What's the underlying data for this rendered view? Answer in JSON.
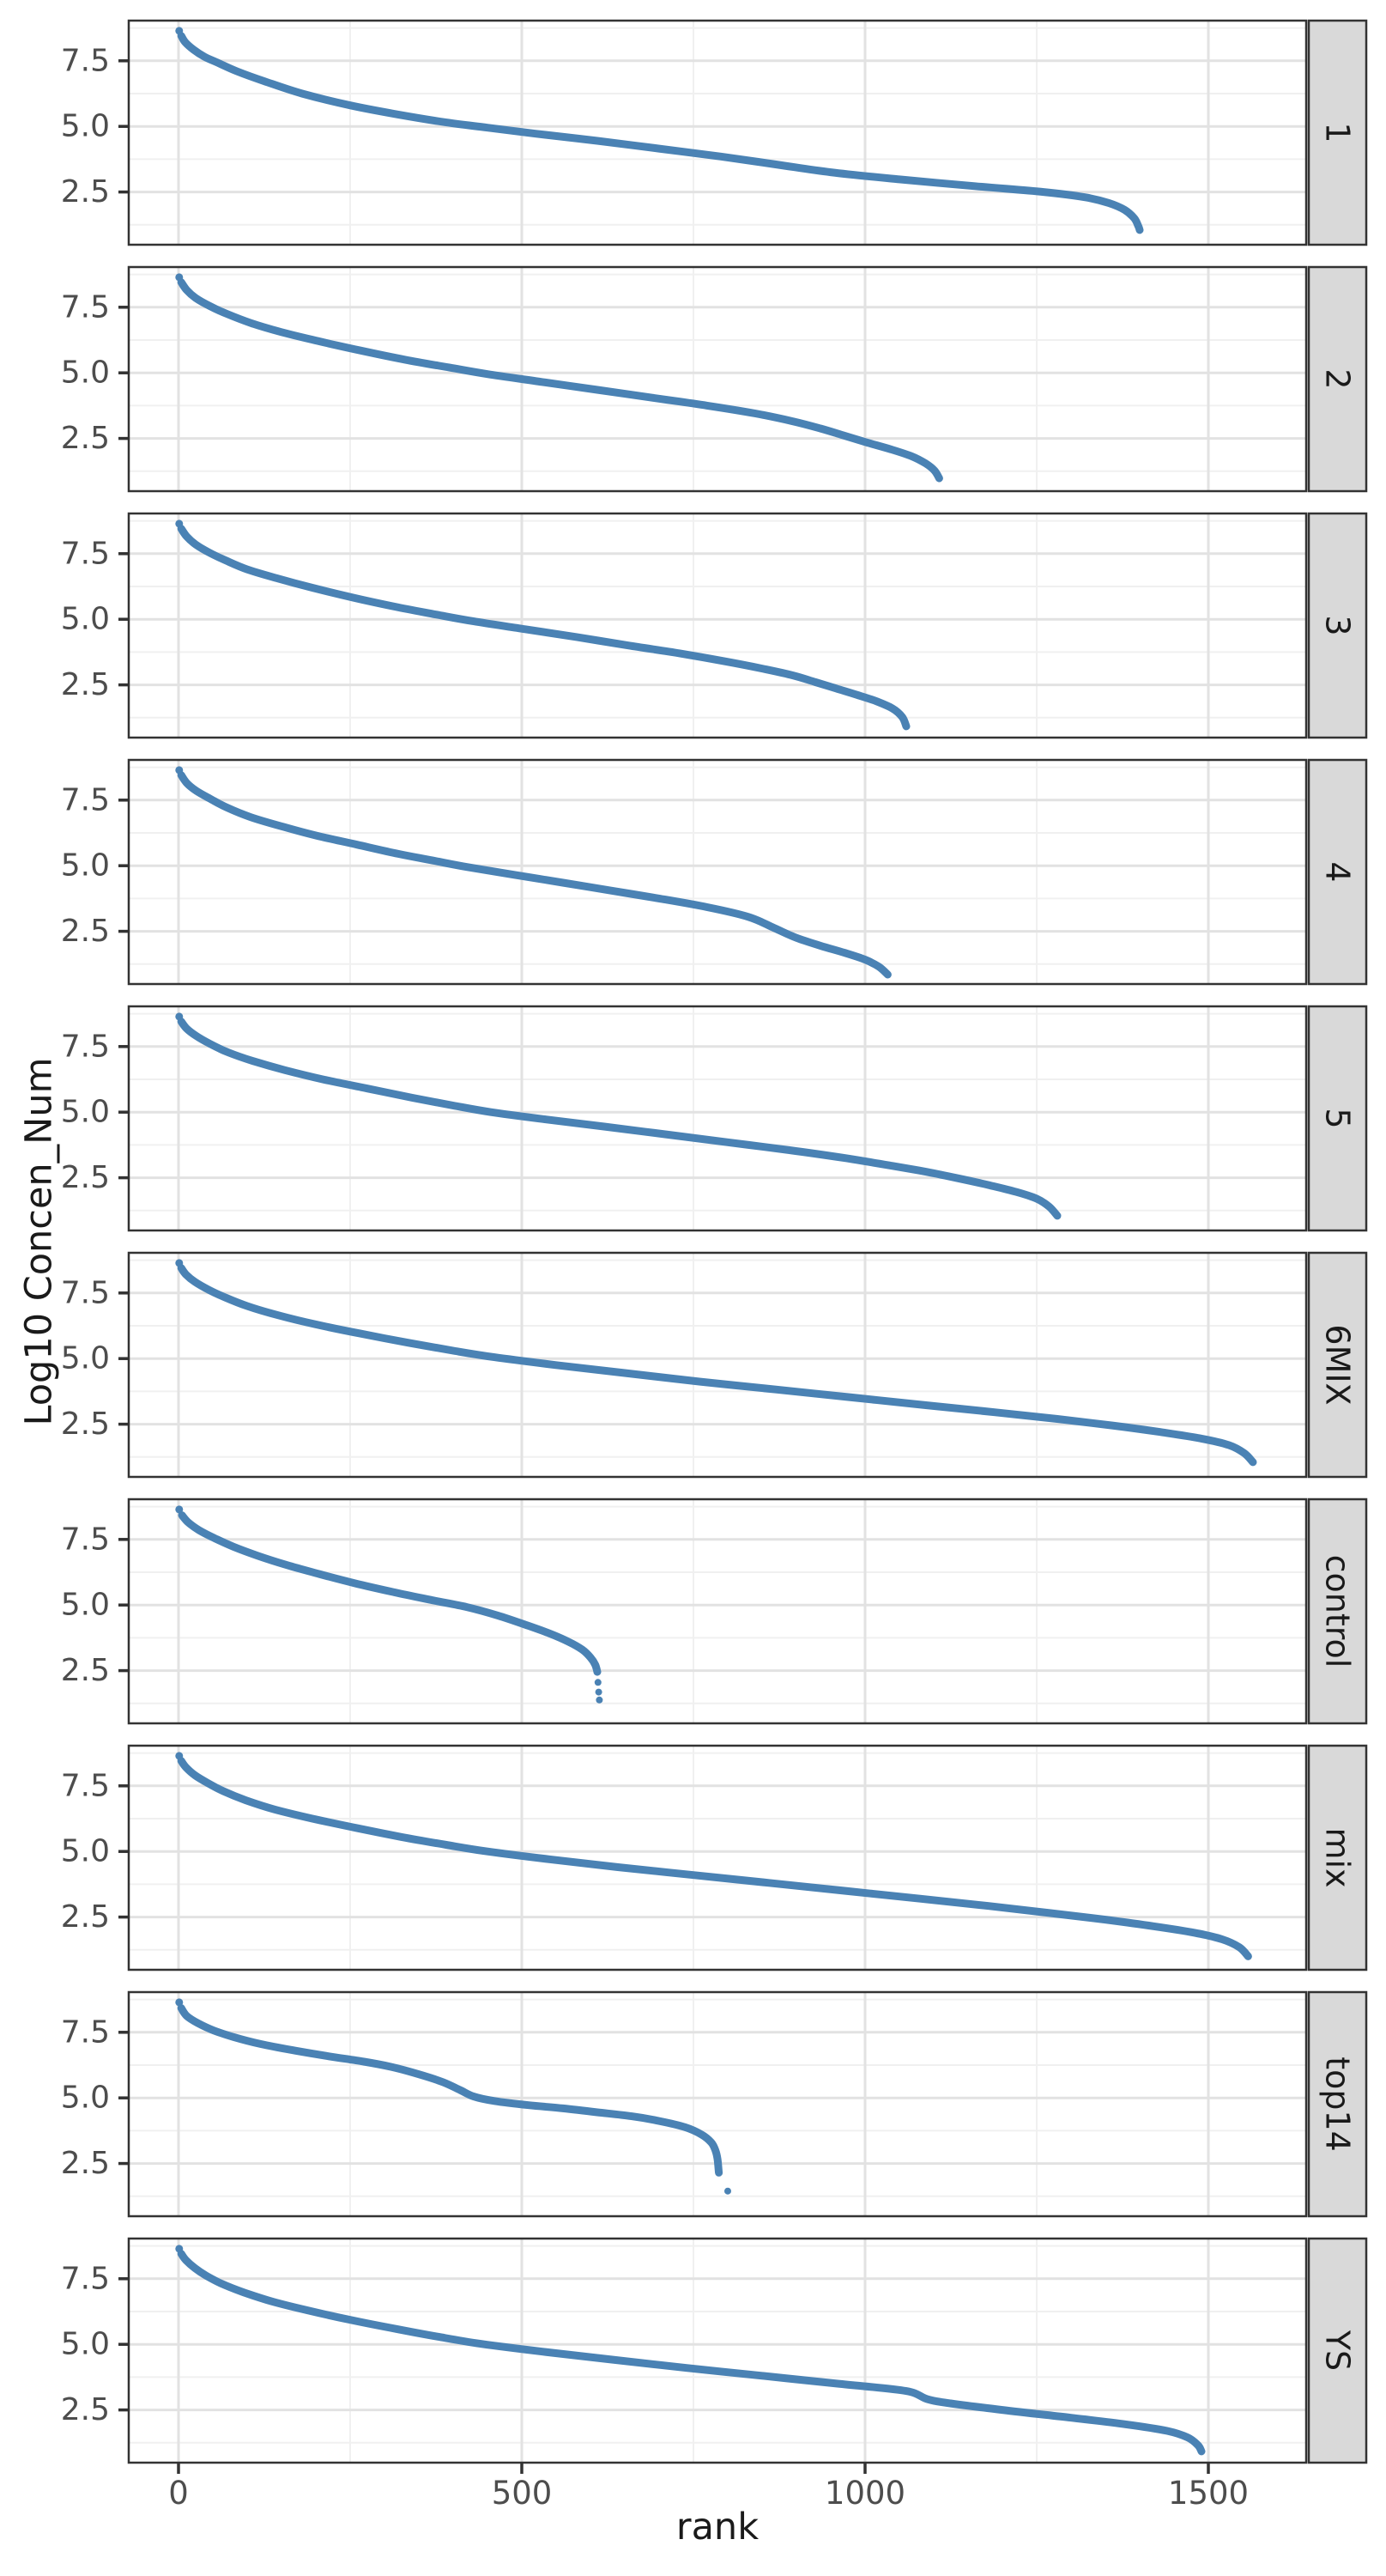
{
  "figure": {
    "x_tick_labels": [
      "0",
      "500",
      "1000",
      "1500"
    ],
    "x_tick_values": [
      0,
      500,
      1000,
      1500
    ],
    "x_minor_values": [
      250,
      750,
      1250
    ],
    "y_tick_labels": [
      "2.5",
      "5.0",
      "7.5"
    ],
    "y_tick_values": [
      2.5,
      5.0,
      7.5
    ],
    "y_minor_values": [
      1.25,
      3.75,
      6.25,
      8.75
    ]
  },
  "chart_data": {
    "type": "scatter",
    "title": "",
    "xlabel": "rank",
    "ylabel": "Log10 Concen_Num",
    "x_domain": [
      -72.5,
      1642.5
    ],
    "y_domain": [
      0.49,
      9.03
    ],
    "grid": true,
    "legend": "none",
    "facet_orientation": "rows",
    "strip_side": "right",
    "style": {
      "point_color": "#4a82b4",
      "panel_bg": "#ffffff",
      "panel_border": "#333333",
      "grid_major": "#e2e2e2",
      "grid_minor": "#f0f0f0",
      "strip_fill": "#d9d9d9",
      "strip_border": "#333333",
      "strip_text": "#1a1a1a",
      "tick_color": "#333333",
      "tick_label_color": "#4d4d4d"
    },
    "facets": [
      {
        "label": "1",
        "n_points": 1400,
        "anchors": [
          [
            1,
            8.64
          ],
          [
            4,
            8.45
          ],
          [
            10,
            8.2
          ],
          [
            22,
            7.92
          ],
          [
            38,
            7.65
          ],
          [
            55,
            7.45
          ],
          [
            85,
            7.1
          ],
          [
            125,
            6.72
          ],
          [
            180,
            6.25
          ],
          [
            250,
            5.8
          ],
          [
            320,
            5.45
          ],
          [
            390,
            5.15
          ],
          [
            450,
            4.95
          ],
          [
            520,
            4.72
          ],
          [
            610,
            4.45
          ],
          [
            700,
            4.15
          ],
          [
            790,
            3.85
          ],
          [
            870,
            3.55
          ],
          [
            950,
            3.25
          ],
          [
            1050,
            2.98
          ],
          [
            1160,
            2.72
          ],
          [
            1260,
            2.5
          ],
          [
            1320,
            2.3
          ],
          [
            1355,
            2.08
          ],
          [
            1378,
            1.82
          ],
          [
            1392,
            1.5
          ],
          [
            1398,
            1.2
          ],
          [
            1400,
            1.05
          ]
        ],
        "extra_dots": []
      },
      {
        "label": "2",
        "n_points": 1108,
        "anchors": [
          [
            1,
            8.64
          ],
          [
            4,
            8.45
          ],
          [
            12,
            8.15
          ],
          [
            25,
            7.85
          ],
          [
            45,
            7.55
          ],
          [
            70,
            7.25
          ],
          [
            105,
            6.9
          ],
          [
            150,
            6.55
          ],
          [
            205,
            6.2
          ],
          [
            265,
            5.85
          ],
          [
            330,
            5.5
          ],
          [
            395,
            5.2
          ],
          [
            450,
            4.95
          ],
          [
            530,
            4.65
          ],
          [
            610,
            4.35
          ],
          [
            690,
            4.05
          ],
          [
            770,
            3.75
          ],
          [
            840,
            3.45
          ],
          [
            895,
            3.15
          ],
          [
            935,
            2.88
          ],
          [
            968,
            2.62
          ],
          [
            1002,
            2.35
          ],
          [
            1038,
            2.08
          ],
          [
            1068,
            1.82
          ],
          [
            1088,
            1.55
          ],
          [
            1101,
            1.28
          ],
          [
            1108,
            0.98
          ]
        ],
        "extra_dots": []
      },
      {
        "label": "3",
        "n_points": 1060,
        "anchors": [
          [
            1,
            8.64
          ],
          [
            4,
            8.45
          ],
          [
            12,
            8.15
          ],
          [
            25,
            7.85
          ],
          [
            44,
            7.55
          ],
          [
            68,
            7.25
          ],
          [
            100,
            6.9
          ],
          [
            145,
            6.55
          ],
          [
            195,
            6.2
          ],
          [
            255,
            5.82
          ],
          [
            315,
            5.48
          ],
          [
            375,
            5.18
          ],
          [
            430,
            4.92
          ],
          [
            505,
            4.62
          ],
          [
            580,
            4.32
          ],
          [
            655,
            4.0
          ],
          [
            730,
            3.7
          ],
          [
            795,
            3.4
          ],
          [
            850,
            3.12
          ],
          [
            895,
            2.86
          ],
          [
            928,
            2.6
          ],
          [
            958,
            2.36
          ],
          [
            988,
            2.12
          ],
          [
            1016,
            1.88
          ],
          [
            1040,
            1.6
          ],
          [
            1054,
            1.28
          ],
          [
            1060,
            0.92
          ]
        ],
        "extra_dots": []
      },
      {
        "label": "4",
        "n_points": 1033,
        "anchors": [
          [
            1,
            8.64
          ],
          [
            4,
            8.45
          ],
          [
            12,
            8.15
          ],
          [
            26,
            7.85
          ],
          [
            46,
            7.55
          ],
          [
            70,
            7.22
          ],
          [
            105,
            6.85
          ],
          [
            150,
            6.5
          ],
          [
            200,
            6.15
          ],
          [
            260,
            5.8
          ],
          [
            320,
            5.45
          ],
          [
            370,
            5.2
          ],
          [
            420,
            4.95
          ],
          [
            490,
            4.65
          ],
          [
            560,
            4.35
          ],
          [
            630,
            4.05
          ],
          [
            700,
            3.75
          ],
          [
            770,
            3.42
          ],
          [
            830,
            3.05
          ],
          [
            868,
            2.62
          ],
          [
            900,
            2.25
          ],
          [
            935,
            1.95
          ],
          [
            970,
            1.68
          ],
          [
            1000,
            1.42
          ],
          [
            1020,
            1.15
          ],
          [
            1033,
            0.85
          ]
        ],
        "extra_dots": []
      },
      {
        "label": "5",
        "n_points": 1280,
        "anchors": [
          [
            1,
            8.64
          ],
          [
            4,
            8.45
          ],
          [
            12,
            8.18
          ],
          [
            26,
            7.9
          ],
          [
            46,
            7.6
          ],
          [
            72,
            7.28
          ],
          [
            108,
            6.95
          ],
          [
            155,
            6.6
          ],
          [
            210,
            6.25
          ],
          [
            275,
            5.9
          ],
          [
            340,
            5.55
          ],
          [
            400,
            5.25
          ],
          [
            455,
            5.0
          ],
          [
            535,
            4.72
          ],
          [
            620,
            4.45
          ],
          [
            710,
            4.15
          ],
          [
            800,
            3.85
          ],
          [
            890,
            3.55
          ],
          [
            970,
            3.25
          ],
          [
            1040,
            2.95
          ],
          [
            1090,
            2.72
          ],
          [
            1135,
            2.48
          ],
          [
            1180,
            2.22
          ],
          [
            1220,
            1.96
          ],
          [
            1250,
            1.7
          ],
          [
            1268,
            1.4
          ],
          [
            1280,
            1.05
          ]
        ],
        "extra_dots": []
      },
      {
        "label": "6MIX",
        "n_points": 1565,
        "anchors": [
          [
            1,
            8.64
          ],
          [
            4,
            8.45
          ],
          [
            11,
            8.2
          ],
          [
            24,
            7.92
          ],
          [
            44,
            7.62
          ],
          [
            66,
            7.35
          ],
          [
            100,
            7.0
          ],
          [
            145,
            6.65
          ],
          [
            200,
            6.3
          ],
          [
            265,
            5.95
          ],
          [
            335,
            5.6
          ],
          [
            400,
            5.3
          ],
          [
            460,
            5.05
          ],
          [
            550,
            4.75
          ],
          [
            650,
            4.45
          ],
          [
            760,
            4.12
          ],
          [
            870,
            3.82
          ],
          [
            980,
            3.52
          ],
          [
            1090,
            3.22
          ],
          [
            1190,
            2.95
          ],
          [
            1280,
            2.7
          ],
          [
            1360,
            2.45
          ],
          [
            1430,
            2.2
          ],
          [
            1490,
            1.95
          ],
          [
            1530,
            1.7
          ],
          [
            1552,
            1.4
          ],
          [
            1565,
            1.05
          ]
        ],
        "extra_dots": []
      },
      {
        "label": "control",
        "n_points": 613,
        "anchors": [
          [
            1,
            8.64
          ],
          [
            5,
            8.42
          ],
          [
            14,
            8.15
          ],
          [
            30,
            7.85
          ],
          [
            52,
            7.55
          ],
          [
            80,
            7.22
          ],
          [
            115,
            6.88
          ],
          [
            158,
            6.52
          ],
          [
            205,
            6.18
          ],
          [
            258,
            5.82
          ],
          [
            315,
            5.48
          ],
          [
            370,
            5.18
          ],
          [
            420,
            4.92
          ],
          [
            465,
            4.6
          ],
          [
            505,
            4.25
          ],
          [
            540,
            3.92
          ],
          [
            568,
            3.6
          ],
          [
            588,
            3.3
          ],
          [
            600,
            3.0
          ],
          [
            607,
            2.72
          ],
          [
            610,
            2.45
          ]
        ],
        "extra_dots": [
          [
            611,
            2.05
          ],
          [
            612,
            1.68
          ],
          [
            613,
            1.38
          ]
        ]
      },
      {
        "label": "mix",
        "n_points": 1558,
        "anchors": [
          [
            1,
            8.64
          ],
          [
            4,
            8.45
          ],
          [
            11,
            8.2
          ],
          [
            24,
            7.9
          ],
          [
            43,
            7.6
          ],
          [
            65,
            7.3
          ],
          [
            98,
            6.95
          ],
          [
            140,
            6.6
          ],
          [
            195,
            6.25
          ],
          [
            258,
            5.9
          ],
          [
            325,
            5.55
          ],
          [
            390,
            5.25
          ],
          [
            450,
            5.0
          ],
          [
            540,
            4.7
          ],
          [
            640,
            4.4
          ],
          [
            750,
            4.1
          ],
          [
            860,
            3.8
          ],
          [
            970,
            3.5
          ],
          [
            1080,
            3.2
          ],
          [
            1180,
            2.92
          ],
          [
            1270,
            2.65
          ],
          [
            1350,
            2.4
          ],
          [
            1420,
            2.15
          ],
          [
            1480,
            1.9
          ],
          [
            1520,
            1.65
          ],
          [
            1545,
            1.35
          ],
          [
            1558,
            1.0
          ]
        ],
        "extra_dots": []
      },
      {
        "label": "top14",
        "n_points": 787,
        "anchors": [
          [
            1,
            8.64
          ],
          [
            4,
            8.42
          ],
          [
            12,
            8.12
          ],
          [
            28,
            7.85
          ],
          [
            50,
            7.58
          ],
          [
            80,
            7.32
          ],
          [
            120,
            7.05
          ],
          [
            170,
            6.8
          ],
          [
            220,
            6.58
          ],
          [
            270,
            6.38
          ],
          [
            310,
            6.18
          ],
          [
            350,
            5.9
          ],
          [
            385,
            5.6
          ],
          [
            410,
            5.3
          ],
          [
            430,
            5.05
          ],
          [
            460,
            4.88
          ],
          [
            510,
            4.72
          ],
          [
            560,
            4.6
          ],
          [
            610,
            4.45
          ],
          [
            660,
            4.3
          ],
          [
            700,
            4.12
          ],
          [
            738,
            3.88
          ],
          [
            762,
            3.6
          ],
          [
            776,
            3.3
          ],
          [
            782,
            3.0
          ],
          [
            785,
            2.68
          ],
          [
            787,
            2.15
          ]
        ],
        "extra_dots": [
          [
            800,
            1.45
          ]
        ]
      },
      {
        "label": "YS",
        "n_points": 1490,
        "anchors": [
          [
            1,
            8.64
          ],
          [
            4,
            8.45
          ],
          [
            11,
            8.2
          ],
          [
            24,
            7.9
          ],
          [
            40,
            7.62
          ],
          [
            62,
            7.32
          ],
          [
            95,
            6.98
          ],
          [
            138,
            6.62
          ],
          [
            190,
            6.28
          ],
          [
            252,
            5.92
          ],
          [
            318,
            5.58
          ],
          [
            380,
            5.28
          ],
          [
            440,
            5.02
          ],
          [
            530,
            4.72
          ],
          [
            630,
            4.42
          ],
          [
            740,
            4.1
          ],
          [
            850,
            3.8
          ],
          [
            960,
            3.5
          ],
          [
            1060,
            3.22
          ],
          [
            1100,
            2.85
          ],
          [
            1200,
            2.5
          ],
          [
            1300,
            2.2
          ],
          [
            1380,
            1.95
          ],
          [
            1440,
            1.7
          ],
          [
            1470,
            1.45
          ],
          [
            1485,
            1.15
          ],
          [
            1490,
            0.92
          ]
        ],
        "extra_dots": []
      }
    ]
  }
}
